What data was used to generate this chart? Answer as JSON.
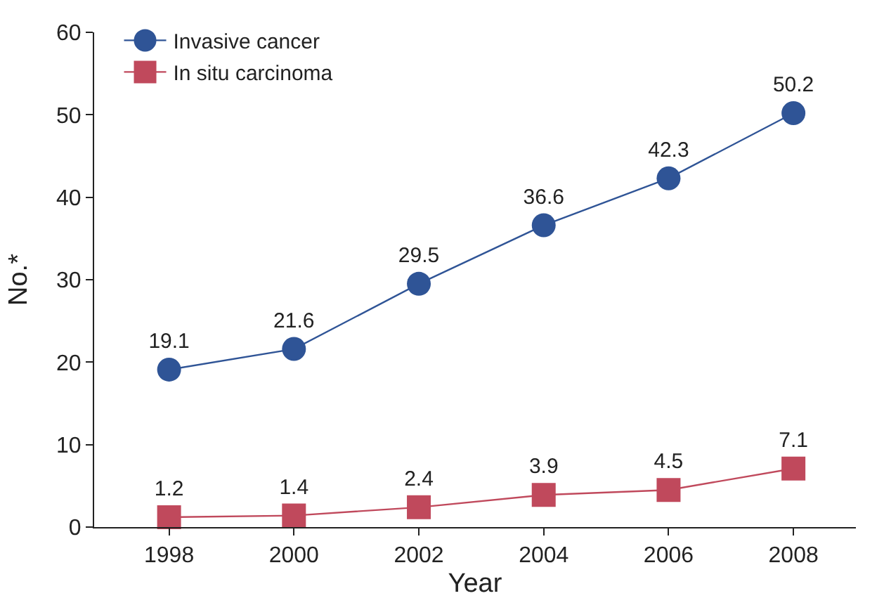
{
  "chart_data": {
    "type": "line",
    "xlabel": "Year",
    "ylabel": "No.*",
    "categories": [
      "1998",
      "2000",
      "2002",
      "2004",
      "2006",
      "2008"
    ],
    "series": [
      {
        "name": "Invasive cancer",
        "color": "#2f5496",
        "marker": "circle",
        "values": [
          19.1,
          21.6,
          29.5,
          36.6,
          42.3,
          50.2
        ]
      },
      {
        "name": "In situ carcinoma",
        "color": "#c0495c",
        "marker": "square",
        "values": [
          1.2,
          1.4,
          2.4,
          3.9,
          4.5,
          7.1
        ]
      }
    ],
    "ylim": [
      0,
      60
    ],
    "yticks": [
      0,
      10,
      20,
      30,
      40,
      50,
      60
    ],
    "data_labels": true,
    "legend": "top left",
    "line_style": "solid"
  }
}
